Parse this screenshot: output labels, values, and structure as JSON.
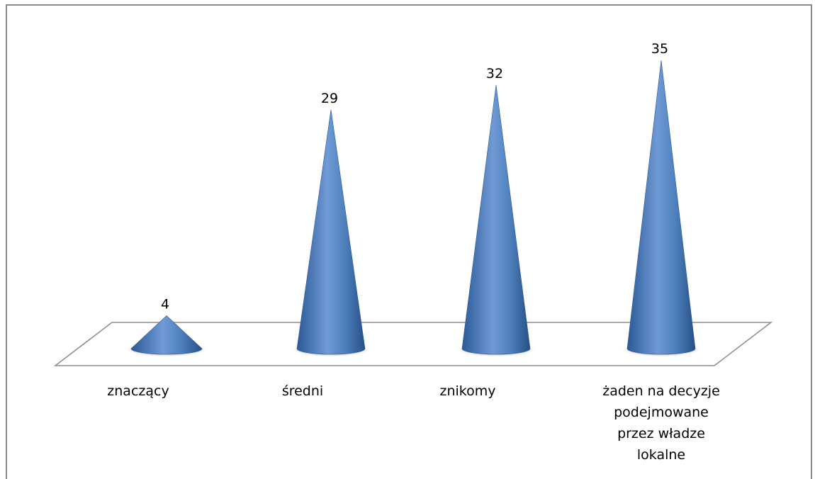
{
  "chart_data": {
    "type": "bar",
    "style": "3d-cone",
    "categories": [
      [
        "znaczący"
      ],
      [
        "średni"
      ],
      [
        "znikomy"
      ],
      [
        "żaden na decyzje",
        "podejmowane",
        "przez władze",
        "lokalne"
      ]
    ],
    "values": [
      4,
      29,
      32,
      35
    ],
    "title": "",
    "xlabel": "",
    "ylabel": "",
    "ylim": [
      0,
      35
    ],
    "grid": false,
    "legend": "none",
    "bar_color": "#4f81bd",
    "bar_color_light": "#8db3e2",
    "bar_color_dark": "#2c5a96",
    "floor_color": "#ffffff",
    "floor_border_color": "#8c8c8c"
  }
}
